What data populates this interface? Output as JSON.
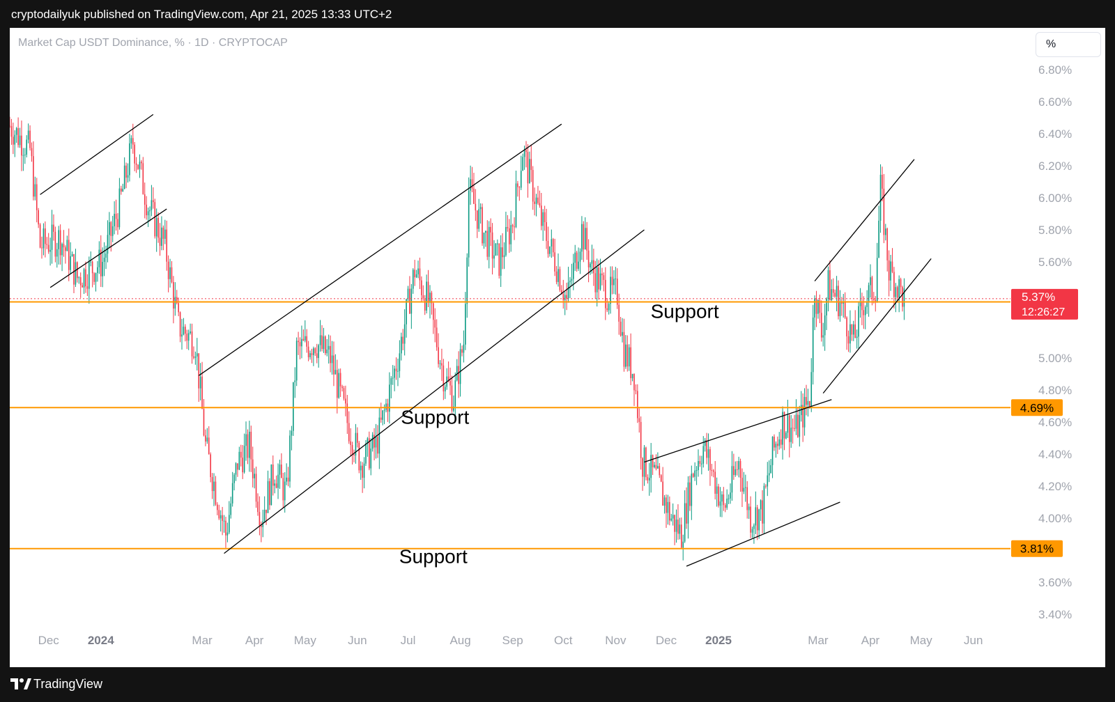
{
  "header": {
    "published_line": "cryptodailyuk published on TradingView.com, Apr 21, 2025 13:33 UTC+2"
  },
  "footer": {
    "brand": "TradingView"
  },
  "chart_data": {
    "type": "candlestick",
    "title": "Market Cap USDT Dominance, % · 1D · CRYPTOCAP",
    "unit_button": "%",
    "y_ticks": [
      "6.80%",
      "6.60%",
      "6.40%",
      "6.20%",
      "6.00%",
      "5.80%",
      "5.60%",
      "5.00%",
      "4.80%",
      "4.60%",
      "4.40%",
      "4.20%",
      "4.00%",
      "3.60%",
      "3.40%"
    ],
    "y_tick_values": [
      6.8,
      6.6,
      6.4,
      6.2,
      6.0,
      5.8,
      5.6,
      5.0,
      4.8,
      4.6,
      4.4,
      4.2,
      4.0,
      3.6,
      3.4
    ],
    "ylim": [
      3.3,
      6.85
    ],
    "x_ticks": [
      {
        "label": "Dec",
        "bold": false
      },
      {
        "label": "2024",
        "bold": true
      },
      {
        "label": "Mar",
        "bold": false
      },
      {
        "label": "Apr",
        "bold": false
      },
      {
        "label": "May",
        "bold": false
      },
      {
        "label": "Jun",
        "bold": false
      },
      {
        "label": "Jul",
        "bold": false
      },
      {
        "label": "Aug",
        "bold": false
      },
      {
        "label": "Sep",
        "bold": false
      },
      {
        "label": "Oct",
        "bold": false
      },
      {
        "label": "Nov",
        "bold": false
      },
      {
        "label": "Dec",
        "bold": false
      },
      {
        "label": "2025",
        "bold": true
      },
      {
        "label": "Mar",
        "bold": false
      },
      {
        "label": "Apr",
        "bold": false
      },
      {
        "label": "May",
        "bold": false
      },
      {
        "label": "Jun",
        "bold": false
      }
    ],
    "x_tick_dates": [
      "2023-12-01",
      "2024-01-01",
      "2024-03-01",
      "2024-04-01",
      "2024-05-01",
      "2024-06-01",
      "2024-07-01",
      "2024-08-01",
      "2024-09-01",
      "2024-10-01",
      "2024-11-01",
      "2024-12-01",
      "2025-01-01",
      "2025-03-01",
      "2025-04-01",
      "2025-05-01",
      "2025-06-01"
    ],
    "x_range_dates": [
      "2023-11-08",
      "2025-06-23"
    ],
    "price_path": [
      [
        "2023-11-08",
        6.45
      ],
      [
        "2023-11-20",
        6.3
      ],
      [
        "2023-11-26",
        5.7
      ],
      [
        "2023-12-08",
        5.75
      ],
      [
        "2023-12-18",
        5.5
      ],
      [
        "2024-01-02",
        5.6
      ],
      [
        "2024-01-12",
        5.95
      ],
      [
        "2024-01-20",
        6.35
      ],
      [
        "2024-01-29",
        5.95
      ],
      [
        "2024-02-08",
        5.7
      ],
      [
        "2024-02-16",
        5.2
      ],
      [
        "2024-02-26",
        5.1
      ],
      [
        "2024-03-03",
        4.45
      ],
      [
        "2024-03-15",
        3.9
      ],
      [
        "2024-03-22",
        4.35
      ],
      [
        "2024-03-29",
        4.45
      ],
      [
        "2024-04-05",
        4.0
      ],
      [
        "2024-04-13",
        4.3
      ],
      [
        "2024-04-20",
        4.15
      ],
      [
        "2024-04-26",
        5.05
      ],
      [
        "2024-05-07",
        5.1
      ],
      [
        "2024-05-16",
        5.0
      ],
      [
        "2024-05-26",
        4.6
      ],
      [
        "2024-06-03",
        4.35
      ],
      [
        "2024-06-12",
        4.45
      ],
      [
        "2024-06-18",
        4.7
      ],
      [
        "2024-06-26",
        5.05
      ],
      [
        "2024-07-05",
        5.55
      ],
      [
        "2024-07-13",
        5.35
      ],
      [
        "2024-07-22",
        4.9
      ],
      [
        "2024-07-28",
        4.75
      ],
      [
        "2024-08-03",
        5.1
      ],
      [
        "2024-08-06",
        6.05
      ],
      [
        "2024-08-16",
        5.75
      ],
      [
        "2024-08-24",
        5.6
      ],
      [
        "2024-09-01",
        5.85
      ],
      [
        "2024-09-07",
        6.3
      ],
      [
        "2024-09-18",
        5.85
      ],
      [
        "2024-09-28",
        5.55
      ],
      [
        "2024-10-03",
        5.35
      ],
      [
        "2024-10-12",
        5.8
      ],
      [
        "2024-10-18",
        5.55
      ],
      [
        "2024-10-27",
        5.4
      ],
      [
        "2024-11-02",
        5.4
      ],
      [
        "2024-11-06",
        5.05
      ],
      [
        "2024-11-12",
        4.9
      ],
      [
        "2024-11-17",
        4.35
      ],
      [
        "2024-11-25",
        4.25
      ],
      [
        "2024-12-04",
        4.0
      ],
      [
        "2024-12-10",
        3.9
      ],
      [
        "2024-12-17",
        4.3
      ],
      [
        "2024-12-23",
        4.45
      ],
      [
        "2024-12-28",
        4.3
      ],
      [
        "2025-01-04",
        4.05
      ],
      [
        "2025-01-13",
        4.35
      ],
      [
        "2025-01-20",
        4.0
      ],
      [
        "2025-01-27",
        4.05
      ],
      [
        "2025-02-02",
        4.4
      ],
      [
        "2025-02-08",
        4.6
      ],
      [
        "2025-02-16",
        4.55
      ],
      [
        "2025-02-24",
        4.75
      ],
      [
        "2025-02-27",
        5.45
      ],
      [
        "2025-03-03",
        5.15
      ],
      [
        "2025-03-07",
        5.45
      ],
      [
        "2025-03-14",
        5.35
      ],
      [
        "2025-03-22",
        5.1
      ],
      [
        "2025-03-28",
        5.35
      ],
      [
        "2025-04-04",
        5.45
      ],
      [
        "2025-04-07",
        6.05
      ],
      [
        "2025-04-12",
        5.55
      ],
      [
        "2025-04-17",
        5.45
      ],
      [
        "2025-04-21",
        5.37
      ]
    ],
    "horizontal_levels": [
      {
        "value": 5.35,
        "label": "5.35%",
        "color": "#ff9800"
      },
      {
        "value": 4.69,
        "label": "4.69%",
        "color": "#ff9800"
      },
      {
        "value": 3.81,
        "label": "3.81%",
        "color": "#ff9800"
      }
    ],
    "current_price": {
      "label": "5.37%",
      "value": 5.37,
      "countdown": "12:26:27",
      "color": "#f23645"
    },
    "annotations": [
      {
        "text": "Support",
        "date": "2024-12-12",
        "value": 5.25
      },
      {
        "text": "Support",
        "date": "2024-07-17",
        "value": 4.59
      },
      {
        "text": "Support",
        "date": "2024-07-16",
        "value": 3.72
      }
    ],
    "trendlines": [
      [
        [
          "2023-11-26",
          6.02
        ],
        [
          "2024-02-01",
          6.52
        ]
      ],
      [
        [
          "2023-12-02",
          5.44
        ],
        [
          "2024-02-09",
          5.93
        ]
      ],
      [
        [
          "2024-02-28",
          4.89
        ],
        [
          "2024-09-30",
          6.46
        ]
      ],
      [
        [
          "2024-03-14",
          3.78
        ],
        [
          "2024-11-18",
          5.8
        ]
      ],
      [
        [
          "2024-11-18",
          4.35
        ],
        [
          "2025-03-09",
          4.74
        ]
      ],
      [
        [
          "2024-12-13",
          3.7
        ],
        [
          "2025-03-14",
          4.1
        ]
      ],
      [
        [
          "2025-02-27",
          5.48
        ],
        [
          "2025-04-27",
          6.24
        ]
      ],
      [
        [
          "2025-03-04",
          4.78
        ],
        [
          "2025-05-07",
          5.62
        ]
      ]
    ],
    "colors": {
      "up": "#089981",
      "down": "#f23645",
      "level": "#ff9800",
      "trendline": "#000000",
      "grid_text": "#a0a4ad"
    }
  }
}
